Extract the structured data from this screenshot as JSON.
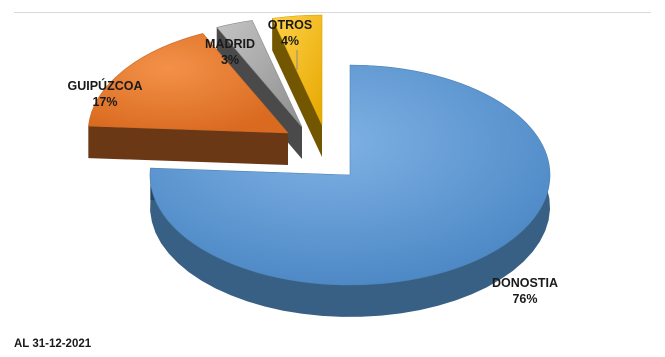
{
  "chart_data": {
    "type": "pie",
    "style": "3d-exploded",
    "categories": [
      "DONOSTIA",
      "GUIPÚZCOA",
      "MADRID",
      "OTROS"
    ],
    "values": [
      76,
      17,
      3,
      4
    ],
    "value_labels": [
      "76%",
      "17%",
      "3%",
      "4%"
    ],
    "colors": [
      "#5b9bd5",
      "#ed7d31",
      "#a5a5a5",
      "#ffc000"
    ],
    "legend": "none"
  },
  "footnote": "AL 31-12-2021"
}
